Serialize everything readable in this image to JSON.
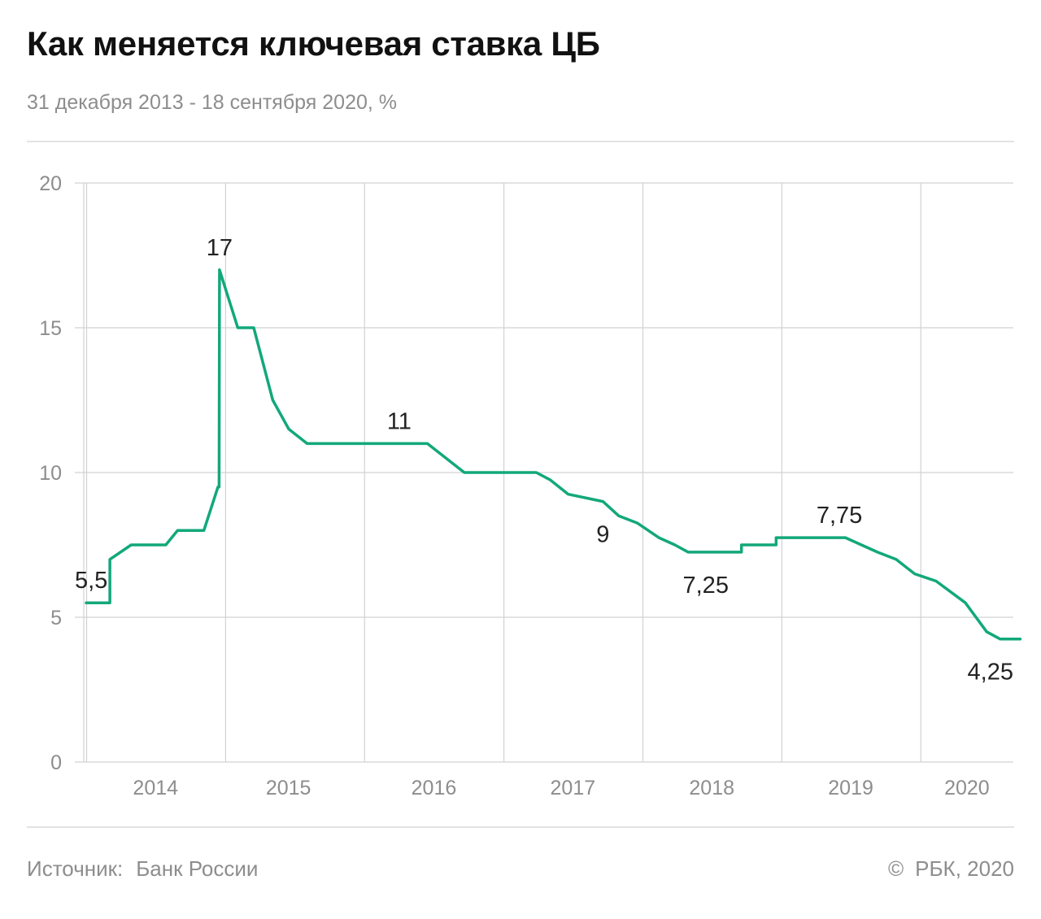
{
  "header": {
    "title": "Как меняется ключевая ставка ЦБ",
    "subtitle": "31 декабря 2013 - 18 сентября 2020, %"
  },
  "footer": {
    "source_label": "Источник:",
    "source_value": "Банк России",
    "copyright_symbol": "©",
    "copyright_text": "РБК, 2020"
  },
  "colors": {
    "line": "#12a87a",
    "grid": "#d2d2d2",
    "tick_text": "#8d8d8d",
    "label_text": "#222222"
  },
  "chart_data": {
    "type": "line",
    "title": "Как меняется ключевая ставка ЦБ",
    "subtitle": "31 декабря 2013 - 18 сентября 2020, %",
    "xlabel": "",
    "ylabel": "",
    "ylim": [
      0,
      20
    ],
    "yticks": [
      0,
      5,
      10,
      15,
      20
    ],
    "xlim": [
      "2013-12-01",
      "2020-08-31"
    ],
    "x_gridlines": [
      "2014-01-01",
      "2015-01-01",
      "2016-01-01",
      "2017-01-01",
      "2018-01-01",
      "2019-01-01",
      "2020-01-01"
    ],
    "x_ticks": [
      {
        "label": "2014",
        "date": "2014-07-01"
      },
      {
        "label": "2015",
        "date": "2015-06-15"
      },
      {
        "label": "2016",
        "date": "2016-07-01"
      },
      {
        "label": "2017",
        "date": "2017-07-01"
      },
      {
        "label": "2018",
        "date": "2018-07-01"
      },
      {
        "label": "2019",
        "date": "2019-07-01"
      },
      {
        "label": "2020",
        "date": "2020-05-01"
      }
    ],
    "grid": true,
    "series": [
      {
        "points": [
          {
            "x": "2013-12-31",
            "y": 5.5
          },
          {
            "x": "2014-03-03",
            "y": 5.5
          },
          {
            "x": "2014-03-03",
            "y": 7.0
          },
          {
            "x": "2014-04-28",
            "y": 7.5
          },
          {
            "x": "2014-07-28",
            "y": 7.5
          },
          {
            "x": "2014-08-28",
            "y": 8.0
          },
          {
            "x": "2014-11-05",
            "y": 8.0
          },
          {
            "x": "2014-12-12",
            "y": 9.5
          },
          {
            "x": "2014-12-15",
            "y": 9.5
          },
          {
            "x": "2014-12-16",
            "y": 17.0
          },
          {
            "x": "2015-02-02",
            "y": 15.0
          },
          {
            "x": "2015-03-16",
            "y": 15.0
          },
          {
            "x": "2015-05-05",
            "y": 12.5
          },
          {
            "x": "2015-06-16",
            "y": 11.5
          },
          {
            "x": "2015-08-03",
            "y": 11.0
          },
          {
            "x": "2016-06-14",
            "y": 11.0
          },
          {
            "x": "2016-09-19",
            "y": 10.0
          },
          {
            "x": "2017-03-27",
            "y": 10.0
          },
          {
            "x": "2017-05-02",
            "y": 9.75
          },
          {
            "x": "2017-06-19",
            "y": 9.25
          },
          {
            "x": "2017-09-18",
            "y": 9.0
          },
          {
            "x": "2017-10-30",
            "y": 8.5
          },
          {
            "x": "2017-12-18",
            "y": 8.25
          },
          {
            "x": "2018-02-12",
            "y": 7.75
          },
          {
            "x": "2018-03-26",
            "y": 7.5
          },
          {
            "x": "2018-04-30",
            "y": 7.25
          },
          {
            "x": "2018-09-17",
            "y": 7.25
          },
          {
            "x": "2018-09-17",
            "y": 7.5
          },
          {
            "x": "2018-12-17",
            "y": 7.5
          },
          {
            "x": "2018-12-17",
            "y": 7.75
          },
          {
            "x": "2019-06-17",
            "y": 7.75
          },
          {
            "x": "2019-07-29",
            "y": 7.5
          },
          {
            "x": "2019-09-09",
            "y": 7.25
          },
          {
            "x": "2019-10-28",
            "y": 7.0
          },
          {
            "x": "2019-12-16",
            "y": 6.5
          },
          {
            "x": "2020-02-10",
            "y": 6.25
          },
          {
            "x": "2020-04-27",
            "y": 5.5
          },
          {
            "x": "2020-06-22",
            "y": 4.5
          },
          {
            "x": "2020-07-27",
            "y": 4.25
          },
          {
            "x": "2020-09-18",
            "y": 4.25
          }
        ]
      }
    ],
    "annotations": [
      {
        "text": "5,5",
        "x": "2013-12-31",
        "y": 5.5,
        "position": "above"
      },
      {
        "text": "17",
        "x": "2014-12-16",
        "y": 17.0,
        "position": "above"
      },
      {
        "text": "11",
        "x": "2016-04-01",
        "y": 11.0,
        "position": "above"
      },
      {
        "text": "9",
        "x": "2017-09-18",
        "y": 9.0,
        "position": "below"
      },
      {
        "text": "7,25",
        "x": "2018-06-15",
        "y": 7.25,
        "position": "below"
      },
      {
        "text": "7,75",
        "x": "2019-06-01",
        "y": 7.75,
        "position": "above"
      },
      {
        "text": "4,25",
        "x": "2020-07-27",
        "y": 4.25,
        "position": "below"
      }
    ]
  }
}
